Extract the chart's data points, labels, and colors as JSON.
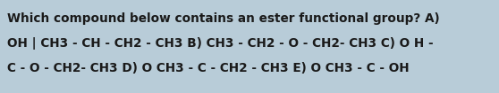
{
  "text_lines": [
    "Which compound below contains an ester functional group? A)",
    "OH | CH3 - CH - CH2 - CH3 B) CH3 - CH2 - O - CH2- CH3 C) O H -",
    "C - O - CH2- CH3 D) O CH3 - C - CH2 - CH3 E) O CH3 - C - OH"
  ],
  "background_color": "#b8ccd8",
  "text_color": "#1a1a1a",
  "font_size": 9.8,
  "fig_width": 5.58,
  "fig_height": 1.05,
  "dpi": 100
}
